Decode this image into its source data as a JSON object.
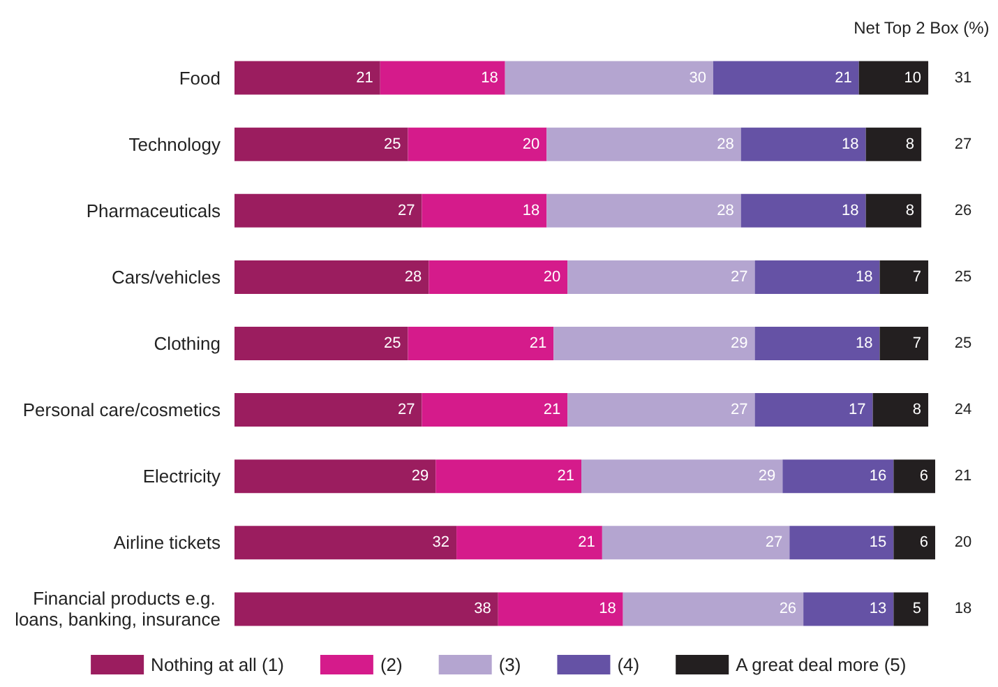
{
  "chart_data": {
    "type": "bar",
    "orientation": "horizontal",
    "stacked": true,
    "data_labels": true,
    "tick_labels": "y",
    "grid": false,
    "legend": "bottom",
    "categories": [
      "Food",
      "Technology",
      "Pharmaceuticals",
      "Cars/vehicles",
      "Clothing",
      "Personal care/cosmetics",
      "Electricity",
      "Airline tickets",
      "Financial products e.g. loans, banking, insurance"
    ],
    "series": [
      {
        "name": "Nothing at all (1)",
        "color": "#9b1d5f",
        "values": [
          21,
          25,
          27,
          28,
          25,
          27,
          29,
          32,
          38
        ]
      },
      {
        "name": "(2)",
        "color": "#d51b8b",
        "values": [
          18,
          20,
          18,
          20,
          21,
          21,
          21,
          21,
          18
        ]
      },
      {
        "name": "(3)",
        "color": "#b4a5d0",
        "values": [
          30,
          28,
          28,
          27,
          29,
          27,
          29,
          27,
          26
        ]
      },
      {
        "name": "(4)",
        "color": "#6552a5",
        "values": [
          21,
          18,
          18,
          18,
          18,
          17,
          16,
          15,
          13
        ]
      },
      {
        "name": "A great deal more (5)",
        "color": "#231f20",
        "values": [
          10,
          8,
          8,
          7,
          7,
          8,
          6,
          6,
          5
        ]
      }
    ],
    "annotations": [
      "Net Top 2 Box (%)",
      "31",
      "27",
      "26",
      "25",
      "25",
      "24",
      "21",
      "20",
      "18"
    ]
  }
}
